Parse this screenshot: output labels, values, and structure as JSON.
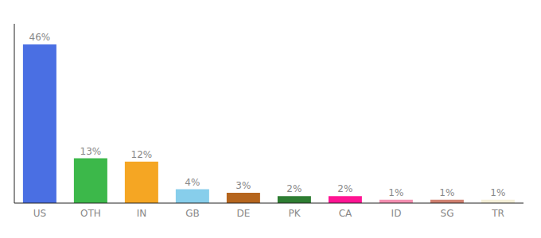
{
  "chart_data": {
    "type": "bar",
    "categories": [
      "US",
      "OTH",
      "IN",
      "GB",
      "DE",
      "PK",
      "CA",
      "ID",
      "SG",
      "TR"
    ],
    "values": [
      46,
      13,
      12,
      4,
      3,
      2,
      2,
      1,
      1,
      1
    ],
    "value_labels": [
      "46%",
      "13%",
      "12%",
      "4%",
      "3%",
      "2%",
      "2%",
      "1%",
      "1%",
      "1%"
    ],
    "colors": [
      "#4a6fe3",
      "#3cb84a",
      "#f5a623",
      "#87ceeb",
      "#b5651d",
      "#2e7d32",
      "#ff1493",
      "#f48fb1",
      "#d08070",
      "#f5f0d8"
    ],
    "ylim": [
      0,
      52
    ],
    "data_labels": true,
    "tick_labels": "x"
  }
}
